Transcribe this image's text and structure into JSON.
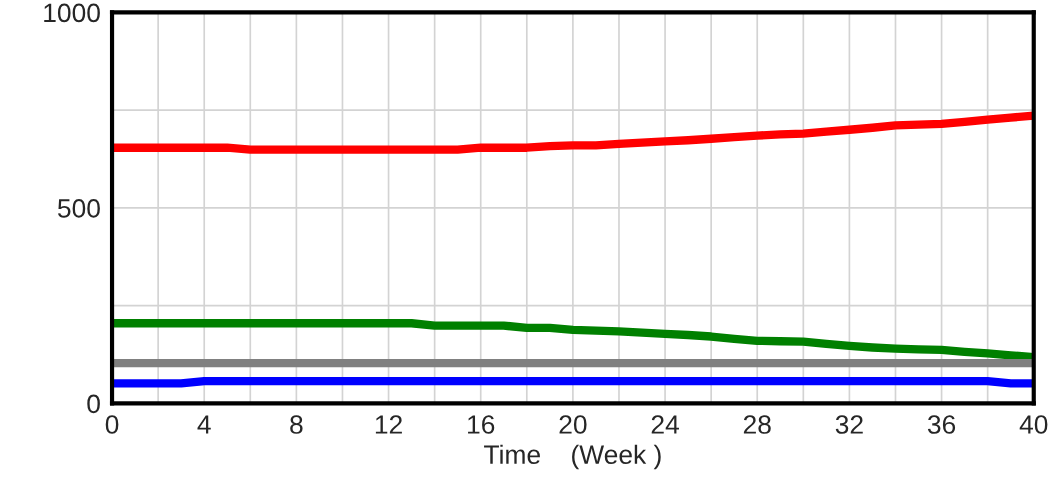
{
  "chart_data": {
    "type": "line",
    "xlabel": "Time    (Week )",
    "x": [
      0,
      1,
      2,
      3,
      4,
      5,
      6,
      7,
      8,
      9,
      10,
      11,
      12,
      13,
      14,
      15,
      16,
      17,
      18,
      19,
      20,
      21,
      22,
      23,
      24,
      25,
      26,
      27,
      28,
      29,
      30,
      31,
      32,
      33,
      34,
      35,
      36,
      37,
      38,
      39,
      40
    ],
    "series": [
      {
        "color": "#ff0000",
        "values": [
          654,
          654,
          654,
          654,
          654,
          654,
          649,
          649,
          649,
          649,
          649,
          649,
          649,
          649,
          649,
          649,
          654,
          654,
          654,
          658,
          660,
          660,
          664,
          667,
          670,
          673,
          677,
          681,
          685,
          688,
          690,
          695,
          700,
          705,
          711,
          713,
          715,
          720,
          726,
          731,
          736
        ]
      },
      {
        "color": "#008000",
        "values": [
          205,
          205,
          205,
          205,
          205,
          205,
          205,
          205,
          205,
          205,
          205,
          205,
          205,
          205,
          199,
          199,
          199,
          199,
          193,
          193,
          188,
          186,
          184,
          181,
          178,
          175,
          171,
          165,
          160,
          159,
          158,
          152,
          147,
          143,
          140,
          138,
          137,
          132,
          128,
          123,
          118
        ]
      },
      {
        "color": "#808080",
        "values": [
          103,
          103,
          103,
          103,
          103,
          103,
          103,
          103,
          103,
          103,
          103,
          103,
          103,
          103,
          103,
          103,
          103,
          103,
          103,
          103,
          103,
          103,
          103,
          103,
          103,
          103,
          103,
          103,
          103,
          103,
          103,
          103,
          103,
          103,
          103,
          103,
          103,
          103,
          103,
          103,
          103
        ]
      },
      {
        "color": "#0000ff",
        "values": [
          51,
          51,
          51,
          51,
          57,
          57,
          57,
          57,
          57,
          57,
          57,
          57,
          57,
          57,
          57,
          57,
          57,
          57,
          57,
          57,
          57,
          57,
          57,
          57,
          57,
          57,
          57,
          57,
          57,
          57,
          57,
          57,
          57,
          57,
          57,
          57,
          57,
          57,
          57,
          51,
          51
        ]
      }
    ],
    "xlim": [
      0,
      40
    ],
    "xticks": [
      0,
      {
        "value": 2,
        "label": null
      },
      4,
      {
        "value": 6,
        "label": null
      },
      8,
      {
        "value": 10,
        "label": null
      },
      12,
      {
        "value": 14,
        "label": null
      },
      16,
      {
        "value": 18,
        "label": null
      },
      20,
      {
        "value": 22,
        "label": null
      },
      24,
      {
        "value": 26,
        "label": null
      },
      28,
      {
        "value": 30,
        "label": null
      },
      32,
      {
        "value": 34,
        "label": null
      },
      36,
      {
        "value": 38,
        "label": null
      },
      40
    ],
    "ylim": [
      0,
      1000
    ],
    "yticks": [
      0,
      {
        "value": 250,
        "label": null
      },
      500,
      {
        "value": 750,
        "label": null
      },
      1000
    ],
    "grid": true,
    "marker": "none",
    "line_style": "solid"
  }
}
